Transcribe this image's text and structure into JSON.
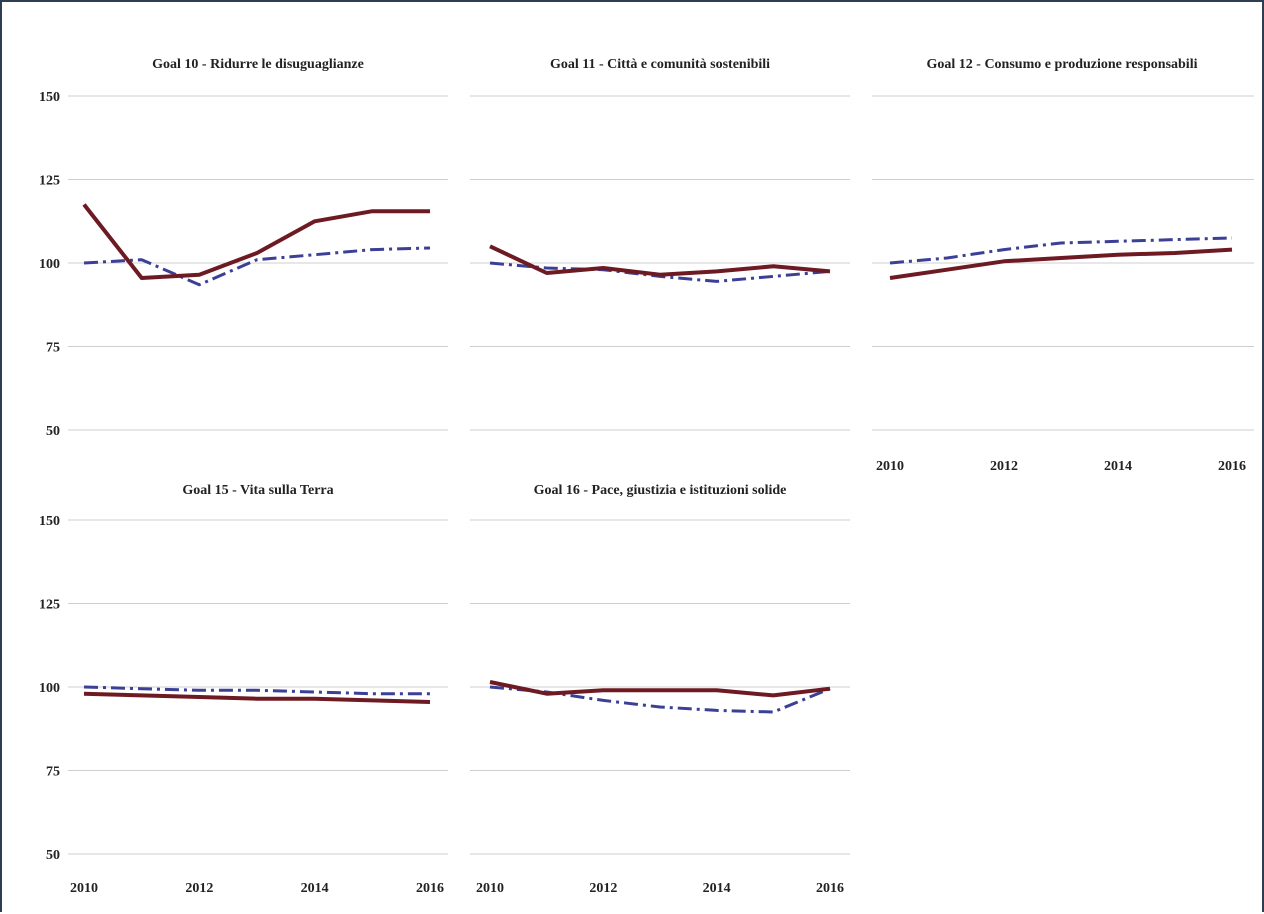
{
  "chart_data": [
    {
      "type": "line",
      "title": "Goal 10 - Ridurre le disuguaglianze",
      "x": [
        2010,
        2011,
        2012,
        2013,
        2014,
        2015,
        2016
      ],
      "ylim": [
        50,
        150
      ],
      "yticks": [
        "150",
        "125",
        "100",
        "75",
        "50"
      ],
      "xticks": [],
      "grid": true,
      "series": [
        {
          "style": "solid",
          "color": "#6e1a22",
          "values": [
            117.5,
            95.5,
            96.5,
            103,
            112.5,
            115.5,
            115.5
          ]
        },
        {
          "style": "dashdot",
          "color": "#3b3f96",
          "values": [
            100,
            101,
            93.5,
            101,
            102.5,
            104,
            104.5
          ]
        }
      ]
    },
    {
      "type": "line",
      "title": "Goal 11 - Città e comunità sostenibili",
      "x": [
        2010,
        2011,
        2012,
        2013,
        2014,
        2015,
        2016
      ],
      "ylim": [
        50,
        150
      ],
      "yticks": [],
      "xticks": [],
      "grid": true,
      "series": [
        {
          "style": "solid",
          "color": "#6e1a22",
          "values": [
            105,
            97,
            98.5,
            96.5,
            97.5,
            99,
            97.5
          ]
        },
        {
          "style": "dashdot",
          "color": "#3b3f96",
          "values": [
            100,
            98.5,
            98,
            96,
            94.5,
            96,
            97.5
          ]
        }
      ]
    },
    {
      "type": "line",
      "title": "Goal 12 - Consumo e produzione responsabili",
      "x": [
        2010,
        2011,
        2012,
        2013,
        2014,
        2015,
        2016
      ],
      "ylim": [
        50,
        150
      ],
      "yticks": [],
      "xticks": [
        "2010",
        "2012",
        "2014",
        "2016"
      ],
      "grid": true,
      "series": [
        {
          "style": "solid",
          "color": "#6e1a22",
          "values": [
            95.5,
            98,
            100.5,
            101.5,
            102.5,
            103,
            104
          ]
        },
        {
          "style": "dashdot",
          "color": "#3b3f96",
          "values": [
            100,
            101.5,
            104,
            106,
            106.5,
            107,
            107.5
          ]
        }
      ]
    },
    {
      "type": "line",
      "title": "Goal 15 - Vita sulla Terra",
      "x": [
        2010,
        2011,
        2012,
        2013,
        2014,
        2015,
        2016
      ],
      "ylim": [
        50,
        150
      ],
      "yticks": [
        "150",
        "125",
        "100",
        "75",
        "50"
      ],
      "xticks": [
        "2010",
        "2012",
        "2014",
        "2016"
      ],
      "grid": true,
      "series": [
        {
          "style": "solid",
          "color": "#6e1a22",
          "values": [
            98,
            97.5,
            97,
            96.5,
            96.5,
            96,
            95.5
          ]
        },
        {
          "style": "dashdot",
          "color": "#3b3f96",
          "values": [
            100,
            99.5,
            99,
            99,
            98.5,
            98,
            98
          ]
        }
      ]
    },
    {
      "type": "line",
      "title": "Goal 16 - Pace, giustizia e istituzioni solide",
      "x": [
        2010,
        2011,
        2012,
        2013,
        2014,
        2015,
        2016
      ],
      "ylim": [
        50,
        150
      ],
      "yticks": [],
      "xticks": [
        "2010",
        "2012",
        "2014",
        "2016"
      ],
      "grid": true,
      "series": [
        {
          "style": "solid",
          "color": "#6e1a22",
          "values": [
            101.5,
            98,
            99,
            99,
            99,
            97.5,
            99.5
          ]
        },
        {
          "style": "dashdot",
          "color": "#3b3f96",
          "values": [
            100,
            98.5,
            96,
            94,
            93,
            92.5,
            99.5
          ]
        }
      ]
    }
  ]
}
